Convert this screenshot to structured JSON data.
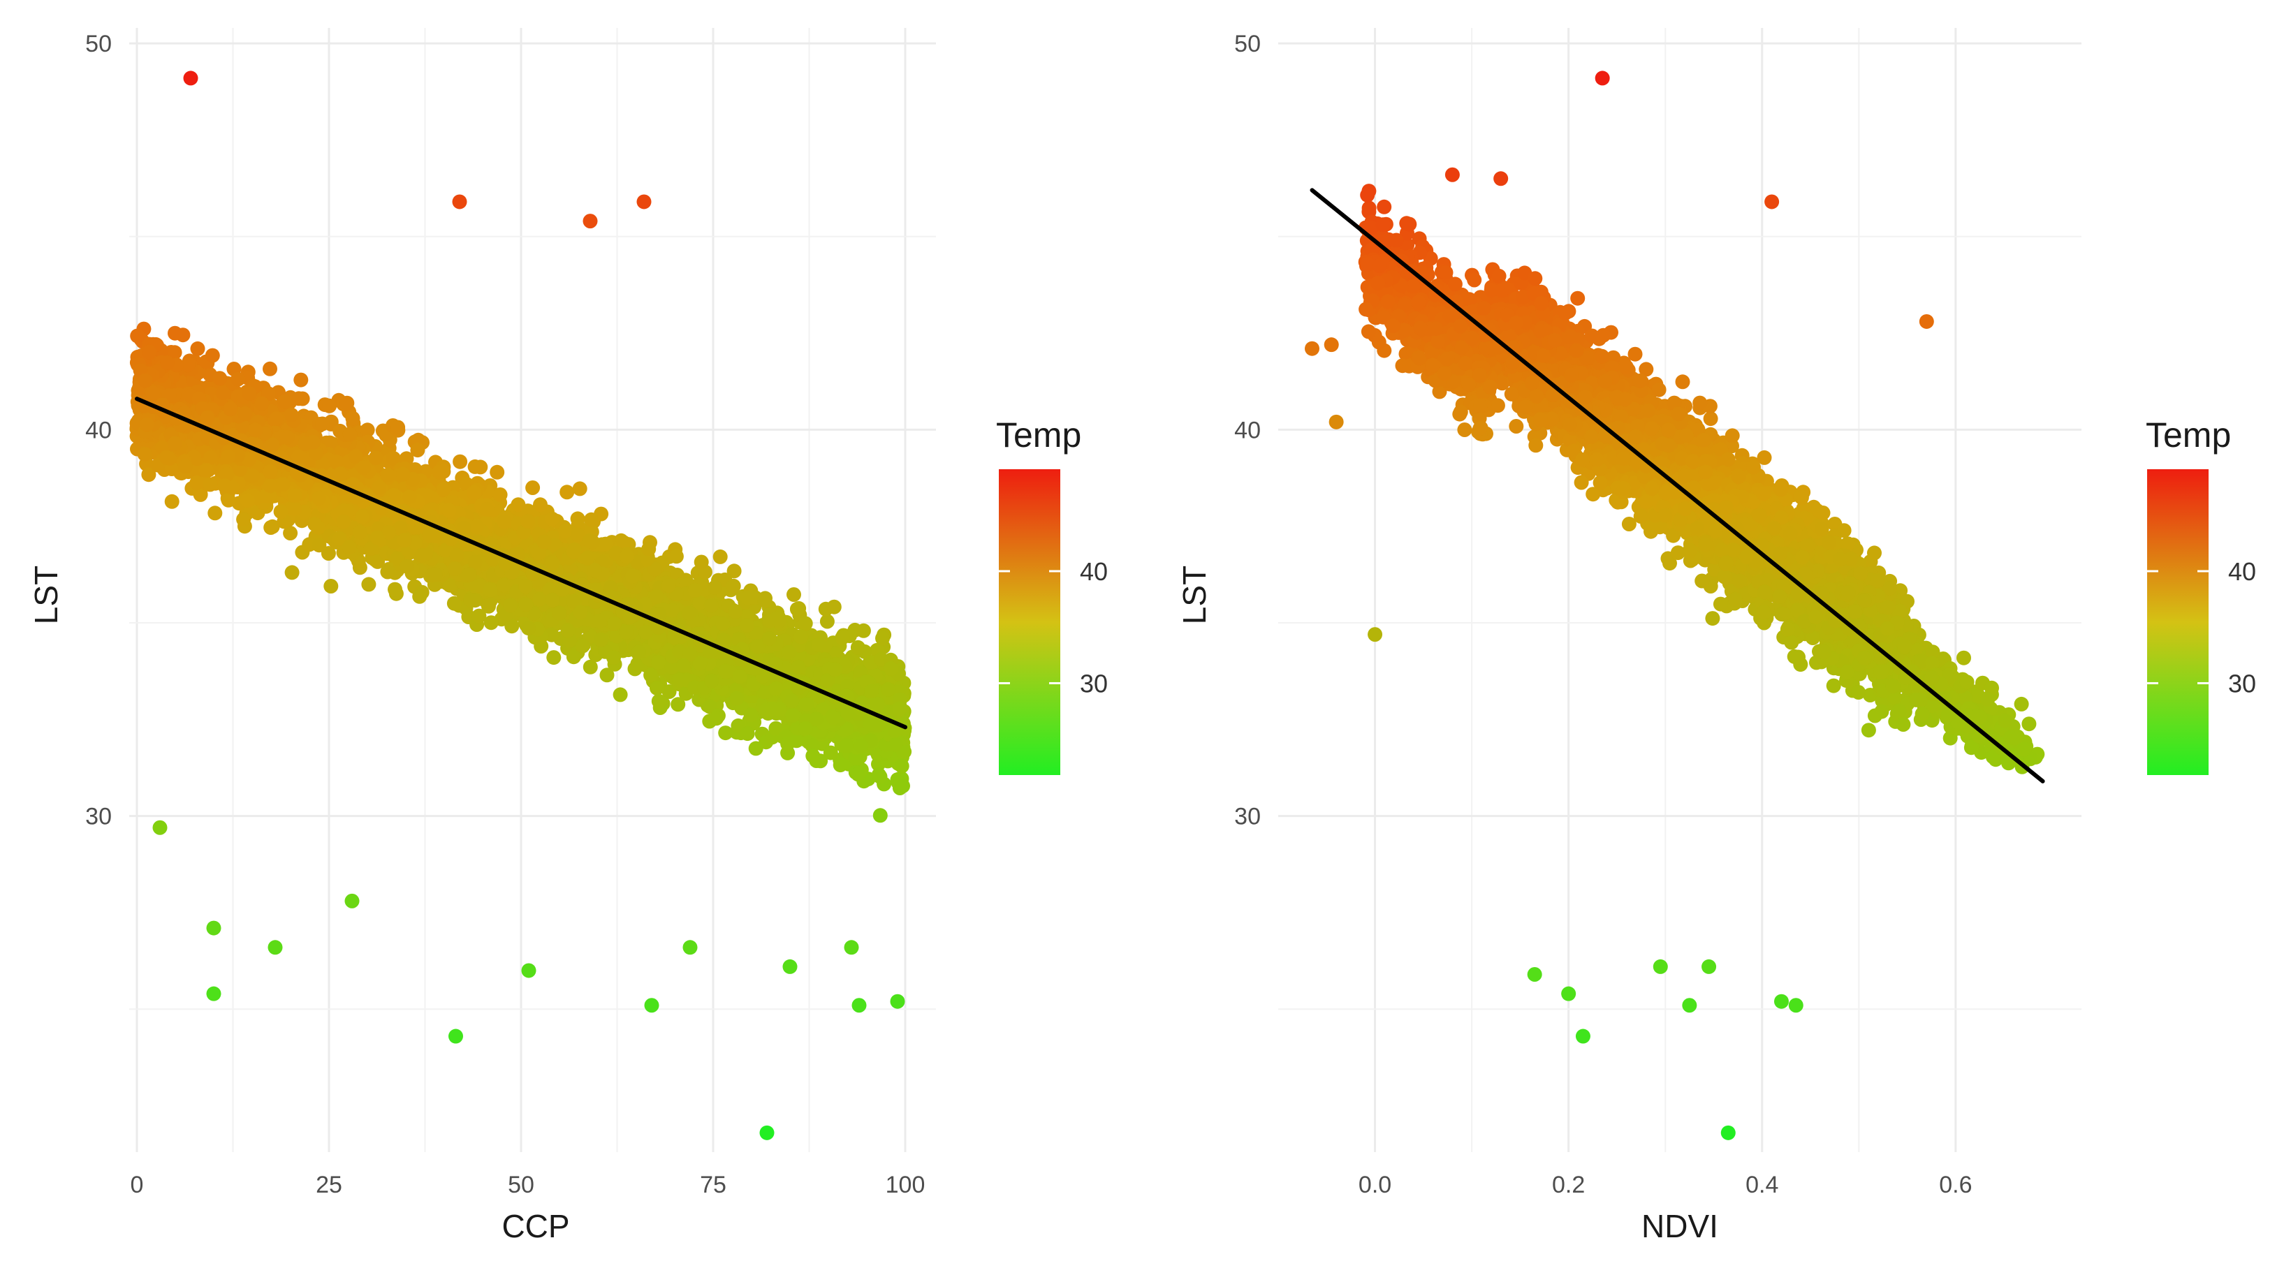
{
  "chart_data": [
    {
      "type": "scatter",
      "title": "",
      "xlabel": "CCP",
      "ylabel": "LST",
      "xlim": [
        -1,
        104
      ],
      "ylim": [
        21.3,
        50.4
      ],
      "x_ticks": [
        0,
        25,
        50,
        75,
        100
      ],
      "x_tick_labels": [
        "0",
        "25",
        "50",
        "75",
        "100"
      ],
      "y_ticks": [
        30,
        40,
        50
      ],
      "y_tick_labels": [
        "30",
        "40",
        "50"
      ],
      "grid": true,
      "regression_line": {
        "x": [
          0,
          100
        ],
        "y": [
          40.8,
          32.3
        ]
      },
      "outliers": [
        {
          "x": 7,
          "y": 49.1
        },
        {
          "x": 82,
          "y": 21.8
        },
        {
          "x": 41.5,
          "y": 24.3
        },
        {
          "x": 10,
          "y": 25.4
        },
        {
          "x": 10,
          "y": 27.1
        },
        {
          "x": 18,
          "y": 26.6
        },
        {
          "x": 51,
          "y": 26.0
        },
        {
          "x": 67,
          "y": 25.1
        },
        {
          "x": 72,
          "y": 26.6
        },
        {
          "x": 85,
          "y": 26.1
        },
        {
          "x": 94,
          "y": 25.1
        },
        {
          "x": 99,
          "y": 25.2
        },
        {
          "x": 28,
          "y": 27.8
        },
        {
          "x": 93,
          "y": 26.6
        },
        {
          "x": 59,
          "y": 45.4
        },
        {
          "x": 66,
          "y": 45.9
        },
        {
          "x": 42,
          "y": 45.9
        },
        {
          "x": 3,
          "y": 29.7
        }
      ],
      "legend": {
        "title": "Temp",
        "ticks": [
          30,
          40
        ],
        "tick_labels": [
          "30",
          "40"
        ],
        "range": [
          21.8,
          49.1
        ],
        "colors": [
          "#22ee22",
          "#f0e010",
          "#ee1e10"
        ],
        "position": "right"
      }
    },
    {
      "type": "scatter",
      "title": "",
      "xlabel": "NDVI",
      "ylabel": "LST",
      "xlim": [
        -0.1,
        0.73
      ],
      "ylim": [
        21.3,
        50.4
      ],
      "x_ticks": [
        0.0,
        0.2,
        0.4,
        0.6
      ],
      "x_tick_labels": [
        "0.0",
        "0.2",
        "0.4",
        "0.6"
      ],
      "y_ticks": [
        30,
        40,
        50
      ],
      "y_tick_labels": [
        "30",
        "40",
        "50"
      ],
      "grid": true,
      "regression_line": {
        "x": [
          -0.065,
          0.69
        ],
        "y": [
          46.2,
          30.9
        ]
      },
      "outliers": [
        {
          "x": 0.235,
          "y": 49.1
        },
        {
          "x": 0.365,
          "y": 21.8
        },
        {
          "x": 0.215,
          "y": 24.3
        },
        {
          "x": 0.2,
          "y": 25.4
        },
        {
          "x": 0.165,
          "y": 25.9
        },
        {
          "x": 0.325,
          "y": 25.1
        },
        {
          "x": 0.42,
          "y": 25.2
        },
        {
          "x": 0.435,
          "y": 25.1
        },
        {
          "x": 0.295,
          "y": 26.1
        },
        {
          "x": 0.345,
          "y": 26.1
        },
        {
          "x": -0.065,
          "y": 42.1
        },
        {
          "x": -0.045,
          "y": 42.2
        },
        {
          "x": -0.04,
          "y": 40.2
        },
        {
          "x": 0.0,
          "y": 34.7
        },
        {
          "x": 0.08,
          "y": 46.6
        },
        {
          "x": 0.13,
          "y": 46.5
        },
        {
          "x": 0.41,
          "y": 45.9
        },
        {
          "x": 0.57,
          "y": 42.8
        }
      ],
      "legend": {
        "title": "Temp",
        "ticks": [
          30,
          40
        ],
        "tick_labels": [
          "30",
          "40"
        ],
        "range": [
          21.8,
          49.1
        ],
        "colors": [
          "#22ee22",
          "#f0e010",
          "#ee1e10"
        ],
        "position": "right"
      }
    }
  ]
}
